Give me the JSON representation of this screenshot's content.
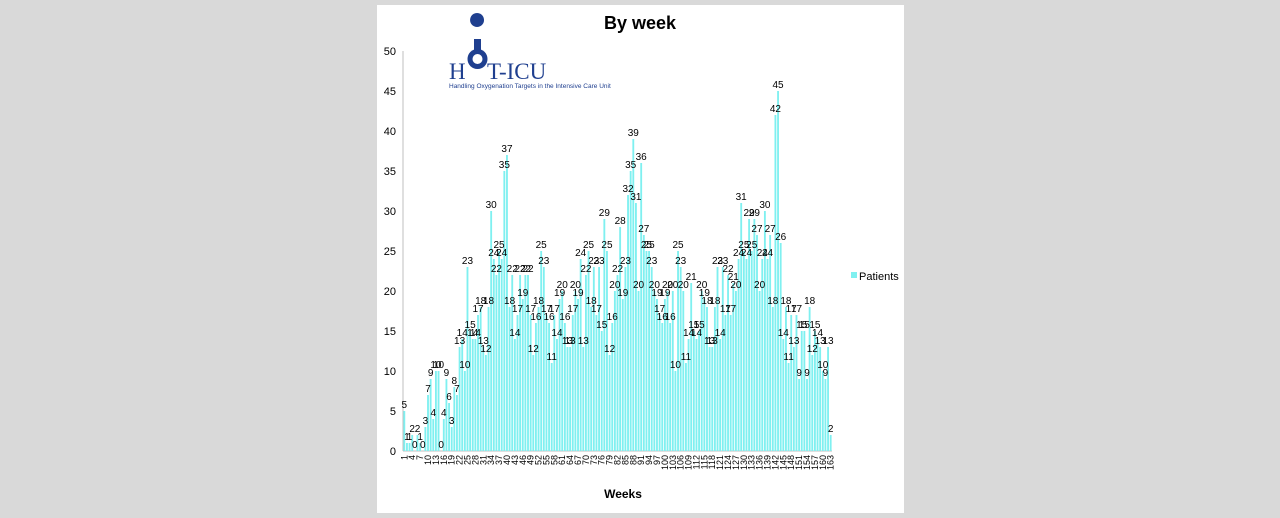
{
  "chart_data": {
    "type": "bar",
    "title": "By week",
    "xlabel": "Weeks",
    "ylabel": "",
    "ylim": [
      0,
      50
    ],
    "yticks": [
      0,
      5,
      10,
      15,
      20,
      25,
      30,
      35,
      40,
      45,
      50
    ],
    "grid": false,
    "legend_position": "right",
    "bar_color": "#7ff0f0",
    "series": [
      {
        "name": "Patients",
        "values": [
          5,
          1,
          1,
          2,
          0,
          2,
          1,
          0,
          3,
          7,
          9,
          4,
          10,
          10,
          0,
          4,
          9,
          6,
          3,
          8,
          7,
          13,
          14,
          10,
          23,
          15,
          14,
          14,
          17,
          18,
          13,
          12,
          18,
          30,
          24,
          22,
          25,
          24,
          35,
          37,
          18,
          22,
          14,
          17,
          22,
          19,
          22,
          22,
          17,
          12,
          16,
          18,
          25,
          23,
          17,
          16,
          11,
          17,
          14,
          19,
          20,
          16,
          13,
          13,
          17,
          20,
          19,
          24,
          13,
          22,
          25,
          18,
          23,
          17,
          23,
          15,
          29,
          25,
          12,
          16,
          20,
          22,
          28,
          19,
          23,
          32,
          35,
          39,
          31,
          20,
          36,
          27,
          25,
          25,
          23,
          20,
          19,
          17,
          16,
          19,
          20,
          16,
          20,
          10,
          25,
          23,
          20,
          11,
          14,
          21,
          15,
          14,
          15,
          20,
          19,
          18,
          13,
          13,
          18,
          23,
          14,
          23,
          17,
          22,
          17,
          21,
          20,
          24,
          31,
          25,
          24,
          29,
          25,
          29,
          27,
          20,
          24,
          30,
          24,
          27,
          18,
          42,
          45,
          26,
          14,
          18,
          11,
          17,
          13,
          17,
          9,
          15,
          15,
          9,
          18,
          12,
          15,
          14,
          13,
          10,
          9,
          13,
          2
        ]
      }
    ],
    "x_tick_labels": [
      "1",
      "4",
      "7",
      "10",
      "13",
      "16",
      "19",
      "22",
      "25",
      "28",
      "31",
      "34",
      "37",
      "40",
      "43",
      "46",
      "49",
      "52",
      "55",
      "58",
      "61",
      "64",
      "67",
      "70",
      "73",
      "76",
      "79",
      "82",
      "85",
      "88",
      "91",
      "94",
      "97",
      "100",
      "103",
      "106",
      "109",
      "112",
      "115",
      "118",
      "121",
      "124",
      "127",
      "130",
      "133",
      "136",
      "139",
      "142",
      "145",
      "148",
      "151",
      "154",
      "157",
      "160",
      "163"
    ]
  },
  "logo": {
    "name": "HOT-ICU",
    "subtitle": "Handling Oxygenation Targets in the Intensive Care Unit"
  }
}
